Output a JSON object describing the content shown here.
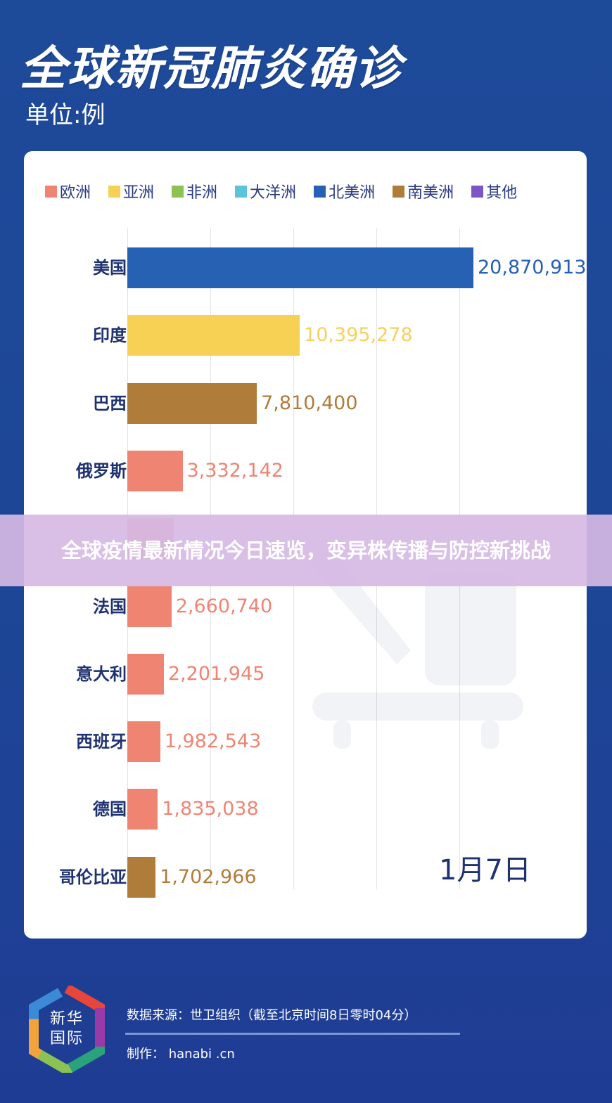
{
  "header": {
    "title": "全球新冠肺炎确诊",
    "unit": "单位:例"
  },
  "legend": [
    {
      "label": "欧洲",
      "color": "#ef8472"
    },
    {
      "label": "亚洲",
      "color": "#f6d154"
    },
    {
      "label": "非洲",
      "color": "#8cc154"
    },
    {
      "label": "大洋洲",
      "color": "#5bc4d8"
    },
    {
      "label": "北美洲",
      "color": "#2761b4"
    },
    {
      "label": "南美洲",
      "color": "#b07c3a"
    },
    {
      "label": "其他",
      "color": "#7d56c6"
    }
  ],
  "rows": [
    {
      "country": "美国",
      "value_text": "20,870,913",
      "value": 20870913,
      "color": "#2761b4",
      "text_color": "#2761b4"
    },
    {
      "country": "印度",
      "value_text": "10,395,278",
      "value": 10395278,
      "color": "#f6d154",
      "text_color": "#f5d160"
    },
    {
      "country": "巴西",
      "value_text": "7,810,400",
      "value": 7810400,
      "color": "#b07c3a",
      "text_color": "#b07c3a"
    },
    {
      "country": "俄罗斯",
      "value_text": "3,332,142",
      "value": 3332142,
      "color": "#ef8472",
      "text_color": "#ef8472"
    },
    {
      "country": "",
      "value_text": "",
      "value": 2800000,
      "color": "#ef8472",
      "text_color": "#ef8472"
    },
    {
      "country": "法国",
      "value_text": "2,660,740",
      "value": 2660740,
      "color": "#ef8472",
      "text_color": "#ef8472"
    },
    {
      "country": "意大利",
      "value_text": "2,201,945",
      "value": 2201945,
      "color": "#ef8472",
      "text_color": "#ef8472"
    },
    {
      "country": "西班牙",
      "value_text": "1,982,543",
      "value": 1982543,
      "color": "#ef8472",
      "text_color": "#ef8472"
    },
    {
      "country": "德国",
      "value_text": "1,835,038",
      "value": 1835038,
      "color": "#ef8472",
      "text_color": "#ef8472"
    },
    {
      "country": "哥伦比亚",
      "value_text": "1,702,966",
      "value": 1702966,
      "color": "#b07c3a",
      "text_color": "#b07c3a"
    }
  ],
  "date": "1月7日",
  "banner": {
    "text": "全球疫情最新情况今日速览，变异株传播与防控新挑战"
  },
  "footer": {
    "logo_line1": "新华",
    "logo_line2": "国际",
    "source": "数据来源：世卫组织（截至北京时间8日零时04分）",
    "maker": "制作： hanabi .cn"
  },
  "chart_data": {
    "type": "bar",
    "orientation": "horizontal",
    "title": "全球新冠肺炎确诊",
    "subtitle": "单位:例",
    "annotation": "1月7日",
    "categories": [
      "美国",
      "印度",
      "巴西",
      "俄罗斯",
      "(obscured)",
      "法国",
      "意大利",
      "西班牙",
      "德国",
      "哥伦比亚"
    ],
    "values": [
      20870913,
      10395278,
      7810400,
      3332142,
      null,
      2660740,
      2201945,
      1982543,
      1835038,
      1702966
    ],
    "bar_region": [
      "北美洲",
      "亚洲",
      "南美洲",
      "欧洲",
      "欧洲",
      "欧洲",
      "欧洲",
      "欧洲",
      "欧洲",
      "南美洲"
    ],
    "legend": [
      "欧洲",
      "亚洲",
      "非洲",
      "大洋洲",
      "北美洲",
      "南美洲",
      "其他"
    ],
    "legend_position": "top",
    "grid": true,
    "xlabel": "",
    "ylabel": "",
    "xlim": [
      0,
      21000000
    ]
  }
}
